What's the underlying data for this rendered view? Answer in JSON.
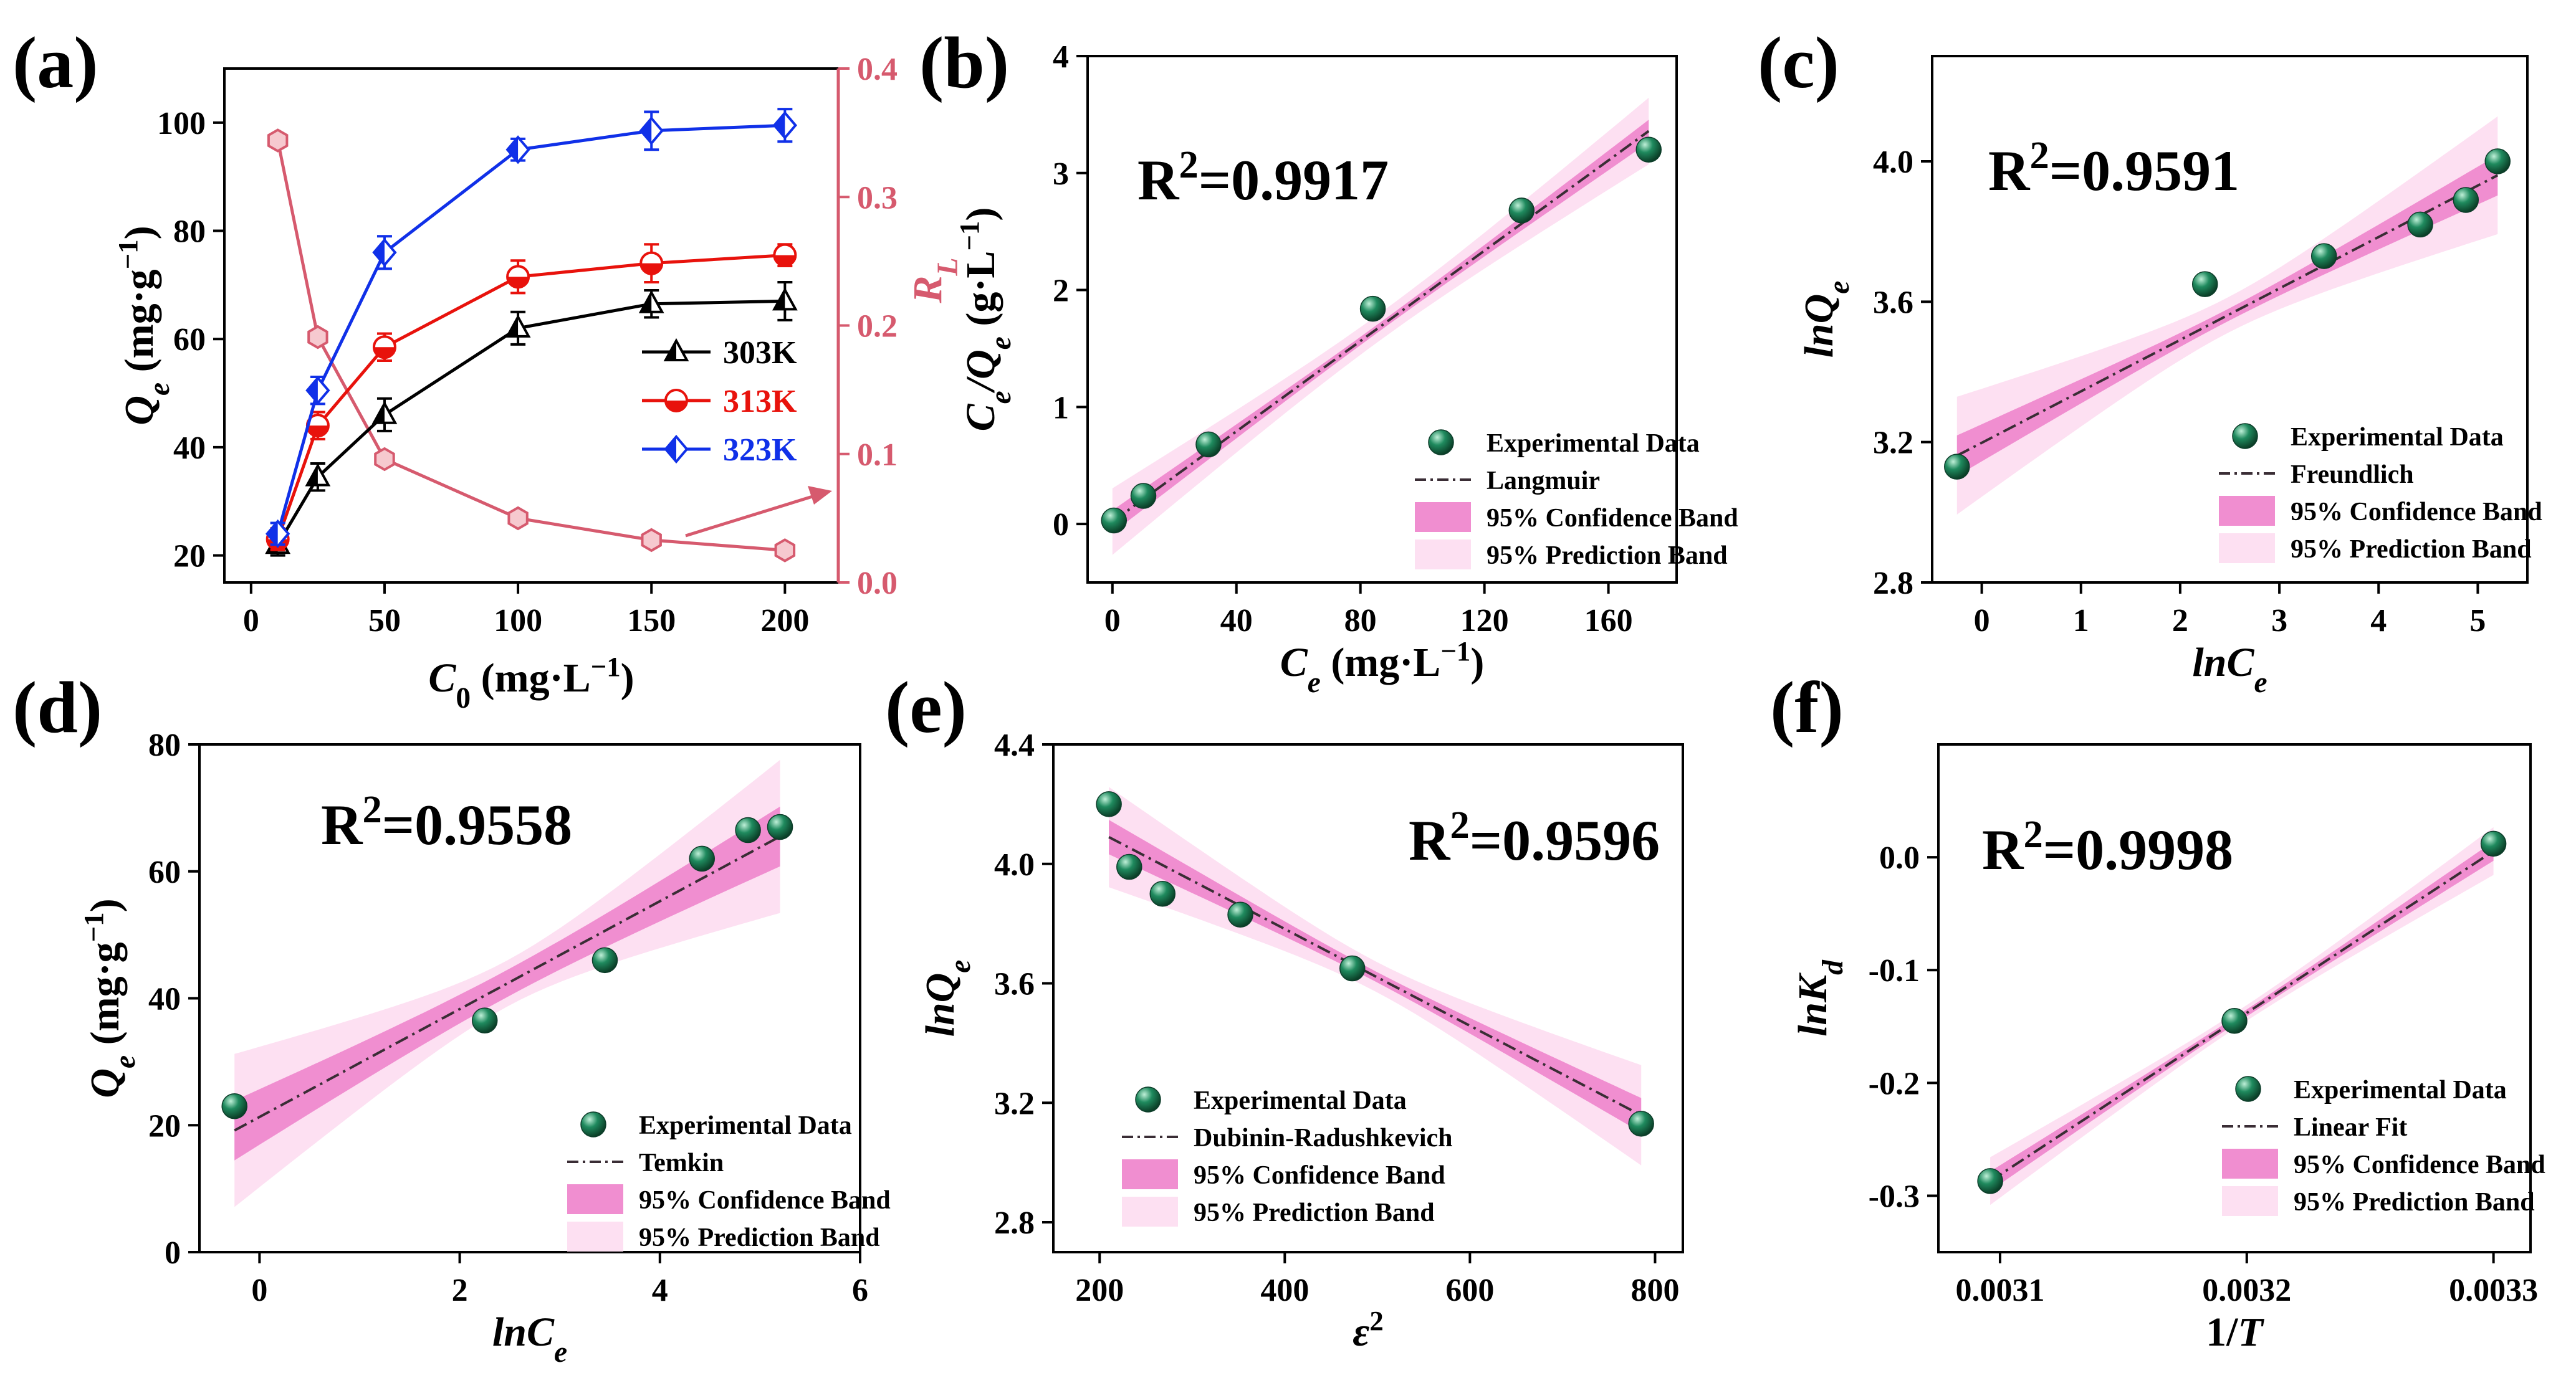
{
  "colors": {
    "black": "#000000",
    "red": "#e8120c",
    "blue": "#1030e8",
    "rl": "#d65a6e",
    "fit": "#3a2d35",
    "conf": "#f08ed0",
    "pred": "#fde0f2",
    "dot": "#1f8a5e"
  },
  "chart_data": [
    {
      "id": "a",
      "panel": "(a)",
      "type": "line",
      "xlabel": "C0 (mg·L−1)",
      "xlabel_main": "C",
      "xlabel_sub": "0",
      "xlabel_unit": " (mg·L",
      "xlabel_exp": "−1",
      "xlabel_end": ")",
      "ylabel": "Qe (mg·g−1)",
      "ylabel_main": "Q",
      "ylabel_sub": "e",
      "ylabel_unit": " (mg·g",
      "ylabel_exp": "−1",
      "ylabel_end": ")",
      "y2label": "RL",
      "y2label_main": "R",
      "y2label_sub": "L",
      "xlim": [
        -10,
        220
      ],
      "ylim": [
        15,
        110
      ],
      "y2lim": [
        0,
        0.4
      ],
      "xticks": [
        0,
        50,
        100,
        150,
        200
      ],
      "xtick_labels": [
        "0",
        "50",
        "100",
        "150",
        "200"
      ],
      "yticks": [
        20,
        40,
        60,
        80,
        100
      ],
      "ytick_labels": [
        "20",
        "40",
        "60",
        "80",
        "100"
      ],
      "y2ticks": [
        0,
        0.1,
        0.2,
        0.3,
        0.4
      ],
      "y2tick_labels": [
        "0.0",
        "0.1",
        "0.2",
        "0.3",
        "0.4"
      ],
      "series": [
        {
          "name": "303K",
          "color": "black",
          "marker": "triangle",
          "x": [
            10,
            25,
            50,
            100,
            150,
            200
          ],
          "values": [
            22,
            34.5,
            46,
            62,
            66.5,
            67
          ],
          "err": [
            2,
            2.5,
            3,
            3,
            2.5,
            3.5
          ]
        },
        {
          "name": "313K",
          "color": "red",
          "marker": "circle",
          "x": [
            10,
            25,
            50,
            100,
            150,
            200
          ],
          "values": [
            23,
            44,
            58.5,
            71.5,
            74,
            75.5
          ],
          "err": [
            2,
            2.5,
            2.5,
            3,
            3.5,
            2
          ]
        },
        {
          "name": "323K",
          "color": "blue",
          "marker": "diamond",
          "x": [
            10,
            25,
            50,
            100,
            150,
            200
          ],
          "values": [
            24,
            50.5,
            76,
            95,
            98.5,
            99.5
          ],
          "err": [
            2,
            2.5,
            3,
            2,
            3.5,
            3
          ]
        }
      ],
      "rl_series": {
        "name": "RL",
        "color": "rl",
        "x": [
          10,
          25,
          50,
          100,
          150,
          200
        ],
        "values": [
          0.344,
          0.191,
          0.096,
          0.05,
          0.033,
          0.025
        ]
      },
      "legend": [
        "303K",
        "313K",
        "323K"
      ]
    },
    {
      "id": "b",
      "panel": "(b)",
      "type": "scatter",
      "r2": "R2=0.9917",
      "r2_main": "R",
      "r2_exp": "2",
      "r2_val": "=0.9917",
      "xlabel": "Ce (mg·L−1)",
      "xlabel_main": "C",
      "xlabel_sub": "e",
      "xlabel_unit": " (mg·L",
      "xlabel_exp": "−1",
      "xlabel_end": ")",
      "ylabel": "Ce/Qe (g·L−1)",
      "ylabel_main": "C",
      "ylabel_sub": "e",
      "ylabel_mid": "/Q",
      "ylabel_sub2": "e",
      "ylabel_unit": " (g·L",
      "ylabel_exp": "−1",
      "ylabel_end": ")",
      "xlim": [
        -8,
        182
      ],
      "ylim": [
        -0.5,
        4
      ],
      "xticks": [
        0,
        40,
        80,
        120,
        160
      ],
      "xtick_labels": [
        "0",
        "40",
        "80",
        "120",
        "160"
      ],
      "yticks": [
        0,
        1,
        2,
        3,
        4
      ],
      "ytick_labels": [
        "0",
        "1",
        "2",
        "3",
        "4"
      ],
      "points": {
        "x": [
          0.5,
          10,
          31,
          84,
          132,
          173
        ],
        "y": [
          0.03,
          0.24,
          0.68,
          1.84,
          2.68,
          3.2
        ]
      },
      "fit": {
        "x0": 0,
        "x1": 173,
        "a": 0.02,
        "b": 0.0193
      },
      "conf": {
        "c": 0.09,
        "k": 0.15
      },
      "pred": {
        "c": 0.26,
        "k": 0.2
      },
      "legend": [
        "Experimental Data",
        "Langmuir",
        "95% Confidence Band",
        "95% Prediction Band"
      ]
    },
    {
      "id": "c",
      "panel": "(c)",
      "type": "scatter",
      "r2": "R2=0.9591",
      "r2_main": "R",
      "r2_exp": "2",
      "r2_val": "=0.9591",
      "xlabel": "lnCe",
      "xlabel_main": "lnC",
      "xlabel_sub": "e",
      "ylabel": "lnQe",
      "ylabel_main": "lnQ",
      "ylabel_sub": "e",
      "xlim": [
        -0.5,
        5.5
      ],
      "ylim": [
        2.8,
        4.3
      ],
      "xticks": [
        0,
        1,
        2,
        3,
        4,
        5
      ],
      "xtick_labels": [
        "0",
        "1",
        "2",
        "3",
        "4",
        "5"
      ],
      "yticks": [
        2.8,
        3.2,
        3.6,
        4.0
      ],
      "ytick_labels": [
        "2.8",
        "3.2",
        "3.6",
        "4.0"
      ],
      "points": {
        "x": [
          -0.25,
          2.25,
          3.45,
          4.42,
          4.88,
          5.2
        ],
        "y": [
          3.13,
          3.65,
          3.73,
          3.82,
          3.89,
          4.0
        ]
      },
      "fit": {
        "x0": -0.25,
        "x1": 5.2,
        "a": 3.198,
        "b": 0.1466
      },
      "conf": {
        "c": 0.055,
        "k": 0.1
      },
      "pred": {
        "c": 0.16,
        "k": 0.1
      },
      "legend": [
        "Experimental Data",
        "Freundlich",
        "95% Confidence Band",
        "95% Prediction Band"
      ]
    },
    {
      "id": "d",
      "panel": "(d)",
      "type": "scatter",
      "r2": "R2=0.9558",
      "r2_main": "R",
      "r2_exp": "2",
      "r2_val": "=0.9558",
      "xlabel": "lnCe",
      "xlabel_main": "lnC",
      "xlabel_sub": "e",
      "ylabel": "Qe (mg·g−1)",
      "ylabel_main": "Q",
      "ylabel_sub": "e",
      "ylabel_unit": " (mg·g",
      "ylabel_exp": "−1",
      "ylabel_end": ")",
      "xlim": [
        -0.6,
        6
      ],
      "ylim": [
        0,
        80
      ],
      "xticks": [
        0,
        2,
        4,
        6
      ],
      "xtick_labels": [
        "0",
        "2",
        "4",
        "6"
      ],
      "yticks": [
        0,
        20,
        40,
        60,
        80
      ],
      "ytick_labels": [
        "0",
        "20",
        "40",
        "60",
        "80"
      ],
      "points": {
        "x": [
          -0.25,
          2.25,
          3.45,
          4.42,
          4.88,
          5.2
        ],
        "y": [
          23,
          36.5,
          46,
          62,
          66.5,
          67
        ]
      },
      "fit": {
        "x0": -0.25,
        "x1": 5.2,
        "a": 21.3,
        "b": 8.5
      },
      "conf": {
        "c": 4.2,
        "k": 0.26
      },
      "pred": {
        "c": 11.5,
        "k": 0.1
      },
      "legend": [
        "Experimental Data",
        "Temkin",
        "95% Confidence Band",
        "95% Prediction Band"
      ]
    },
    {
      "id": "e",
      "panel": "(e)",
      "type": "scatter",
      "r2": "R2=0.9596",
      "r2_main": "R",
      "r2_exp": "2",
      "r2_val": "=0.9596",
      "xlabel": "ε2",
      "xlabel_main": "ε",
      "xlabel_exp": "2",
      "ylabel": "lnQe",
      "ylabel_main": "lnQ",
      "ylabel_sub": "e",
      "xlim": [
        150,
        830
      ],
      "ylim": [
        2.7,
        4.4
      ],
      "xticks": [
        200,
        400,
        600,
        800
      ],
      "xtick_labels": [
        "200",
        "400",
        "600",
        "800"
      ],
      "yticks": [
        2.8,
        3.2,
        3.6,
        4.0,
        4.4
      ],
      "ytick_labels": [
        "2.8",
        "3.2",
        "3.6",
        "4.0",
        "4.4"
      ],
      "points": {
        "x": [
          210,
          232,
          268,
          352,
          473,
          785
        ],
        "y": [
          4.2,
          3.99,
          3.9,
          3.83,
          3.65,
          3.13
        ]
      },
      "fit": {
        "x0": 210,
        "x1": 785,
        "a": 4.43,
        "b": -0.00162
      },
      "conf": {
        "c": 0.055,
        "k": 0.1
      },
      "pred": {
        "c": 0.16,
        "k": 0.1
      },
      "legend": [
        "Experimental Data",
        "Dubinin-Radushkevich",
        "95% Confidence Band",
        "95% Prediction Band"
      ]
    },
    {
      "id": "f",
      "panel": "(f)",
      "type": "scatter",
      "r2": "R2=0.9998",
      "r2_main": "R",
      "r2_exp": "2",
      "r2_val": "=0.9998",
      "xlabel": "1/T",
      "xlabel_main": "1/",
      "xlabel_italic": "T",
      "ylabel": "lnKd",
      "ylabel_main": "lnK",
      "ylabel_sub": "d",
      "xlim": [
        0.003075,
        0.003315
      ],
      "ylim": [
        -0.35,
        0.1
      ],
      "xticks": [
        0.0031,
        0.0032,
        0.0033
      ],
      "xtick_labels": [
        "0.0031",
        "0.0032",
        "0.0033"
      ],
      "yticks": [
        -0.3,
        -0.2,
        -0.1,
        0.0
      ],
      "ytick_labels": [
        "-0.3",
        "-0.2",
        "-0.1",
        "0.0"
      ],
      "points": {
        "x": [
          0.003096,
          0.003195,
          0.0033
        ],
        "y": [
          -0.287,
          -0.145,
          0.012
        ]
      },
      "fit": {
        "x0": 0.003096,
        "x1": 0.0033,
        "a": -4.7264,
        "b": 1433.9
      },
      "conf": {
        "c": 0.008,
        "k": 0.15
      },
      "pred": {
        "c": 0.02,
        "k": 0.12
      },
      "legend": [
        "Experimental Data",
        "Linear Fit",
        "95% Confidence Band",
        "95% Prediction Band"
      ]
    }
  ]
}
